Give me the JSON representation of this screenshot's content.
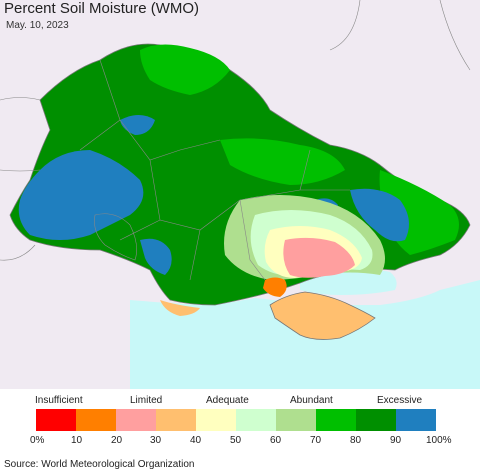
{
  "header": {
    "title": "Percent Soil Moisture (WMO)",
    "date": "May. 10, 2023"
  },
  "legend": {
    "categories": [
      "Insufficient",
      "Limited",
      "Adequate",
      "Abundant",
      "Excessive"
    ],
    "colors": [
      "#ff0000",
      "#ff7f00",
      "#ff9f9f",
      "#ffbf6f",
      "#ffffbf",
      "#cfffcf",
      "#afdf8f",
      "#00bf00",
      "#008f00",
      "#1f7fbf"
    ],
    "ticks": [
      "0%",
      "10",
      "20",
      "30",
      "40",
      "50",
      "60",
      "70",
      "80",
      "90",
      "100%"
    ]
  },
  "source": "Source: World Meteorological Organization",
  "map_colors": {
    "background_land": "#f0eaf2",
    "sea": "#c8f8f8",
    "borders": "#888888"
  }
}
